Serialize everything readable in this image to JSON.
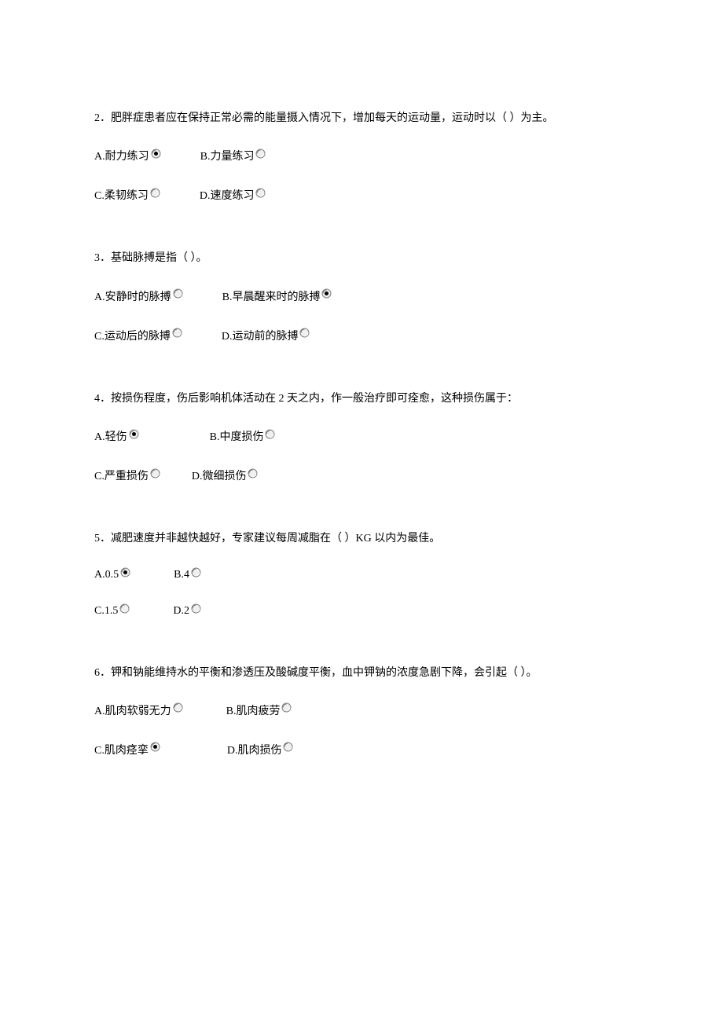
{
  "text_color": "#000000",
  "background_color": "#ffffff",
  "font_size": 14,
  "radio_unselected": {
    "outer_fill": "#f0f0f0",
    "outer_stroke": "#808080",
    "shadow": "#a0a0a0"
  },
  "radio_selected": {
    "outer_fill": "#f0f0f0",
    "outer_stroke": "#808080",
    "inner_fill": "#000000"
  },
  "questions": [
    {
      "number": "2",
      "text": "2．肥胖症患者应在保持正常必需的能量摄入情况下，增加每天的运动量，运动时以（  ）为主。",
      "rows": [
        [
          {
            "label": "A.耐力练习",
            "selected": true,
            "gap": 50
          },
          {
            "label": "B.力量练习",
            "selected": false,
            "gap": 0
          }
        ],
        [
          {
            "label": "C.柔韧练习",
            "selected": false,
            "gap": 50
          },
          {
            "label": "D.速度练习",
            "selected": false,
            "gap": 0
          }
        ]
      ]
    },
    {
      "number": "3",
      "text": "3．基础脉搏是指（  ）。",
      "rows": [
        [
          {
            "label": "A.安静时的脉搏",
            "selected": false,
            "gap": 50
          },
          {
            "label": "B.早晨醒来时的脉搏",
            "selected": true,
            "gap": 0
          }
        ],
        [
          {
            "label": "C.运动后的脉搏",
            "selected": false,
            "gap": 50
          },
          {
            "label": "D.运动前的脉搏",
            "selected": false,
            "gap": 0
          }
        ]
      ]
    },
    {
      "number": "4",
      "text": "4．按损伤程度，伤后影响机体活动在 2 天之内，作一般治疗即可痊愈，这种损伤属于：",
      "rows": [
        [
          {
            "label": "A.轻伤",
            "selected": true,
            "gap": 90
          },
          {
            "label": "B.中度损伤",
            "selected": false,
            "gap": 0
          }
        ],
        [
          {
            "label": "C.严重损伤",
            "selected": false,
            "gap": 40
          },
          {
            "label": "D.微细损伤",
            "selected": false,
            "gap": 0
          }
        ]
      ]
    },
    {
      "number": "5",
      "text": "5．减肥速度并非越快越好，专家建议每周减脂在（  ）KG 以内为最佳。",
      "rows": [
        [
          {
            "label": "A.0.5",
            "selected": true,
            "gap": 55
          },
          {
            "label": "B.4",
            "selected": false,
            "gap": 0
          }
        ],
        [
          {
            "label": "C.1.5",
            "selected": false,
            "gap": 55
          },
          {
            "label": "D.2",
            "selected": false,
            "gap": 0
          }
        ]
      ]
    },
    {
      "number": "6",
      "text": "6．钾和钠能维持水的平衡和渗透压及酸碱度平衡，血中钾钠的浓度急剧下降，会引起（  ）。",
      "rows": [
        [
          {
            "label": "A.肌肉软弱无力",
            "selected": false,
            "gap": 55
          },
          {
            "label": "B.肌肉疲劳",
            "selected": false,
            "gap": 0
          }
        ],
        [
          {
            "label": "C.肌肉痉挛",
            "selected": true,
            "gap": 85
          },
          {
            "label": "D.肌肉损伤",
            "selected": false,
            "gap": 0
          }
        ]
      ]
    }
  ]
}
